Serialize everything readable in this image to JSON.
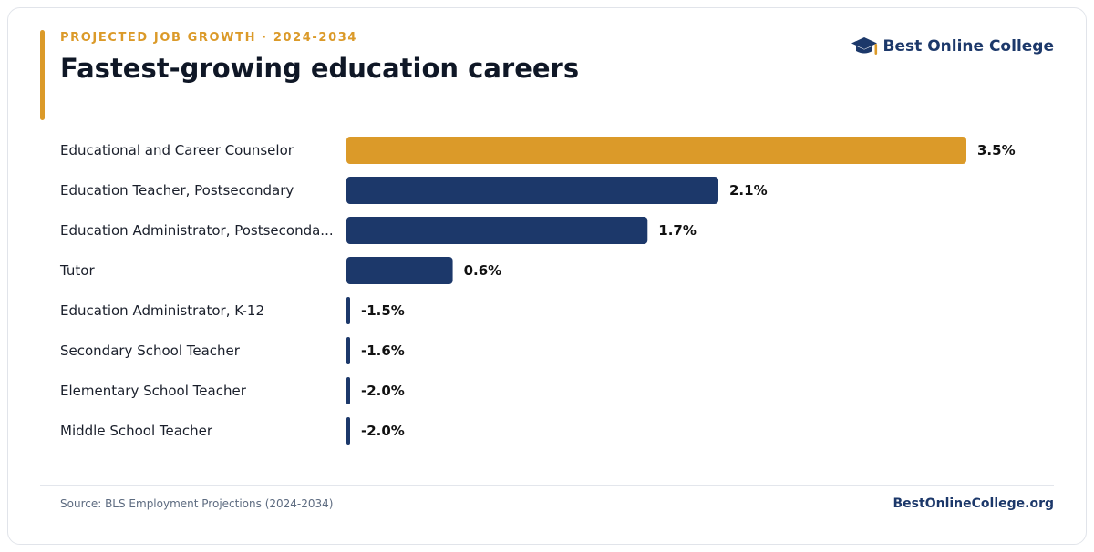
{
  "header": {
    "eyebrow": "PROJECTED JOB GROWTH · 2024-2034",
    "title": "Fastest-growing education careers"
  },
  "brand": {
    "name": "Best Online College",
    "icon": "graduation-cap-icon"
  },
  "footer": {
    "source": "Source: BLS Employment Projections (2024-2034)",
    "site": "BestOnlineCollege.org"
  },
  "colors": {
    "highlight": "#DB9A29",
    "bar": "#1C386A",
    "title": "#0F1726",
    "label": "#1A1F2B"
  },
  "chart_data": {
    "type": "bar",
    "orientation": "horizontal",
    "categories": [
      "Educational and Career Counselor",
      "Education Teacher, Postsecondary",
      "Education Administrator, Postseconda...",
      "Tutor",
      "Education Administrator, K-12",
      "Secondary School Teacher",
      "Elementary School Teacher",
      "Middle School Teacher"
    ],
    "values": [
      3.5,
      2.1,
      1.7,
      0.6,
      -1.5,
      -1.6,
      -2.0,
      -2.0
    ],
    "value_labels": [
      "3.5%",
      "2.1%",
      "1.7%",
      "0.6%",
      "-1.5%",
      "-1.6%",
      "-2.0%",
      "-2.0%"
    ],
    "highlighted_index": 0,
    "unit": "%",
    "xlim": [
      0,
      3.5
    ],
    "grid": false,
    "legend": "none"
  }
}
